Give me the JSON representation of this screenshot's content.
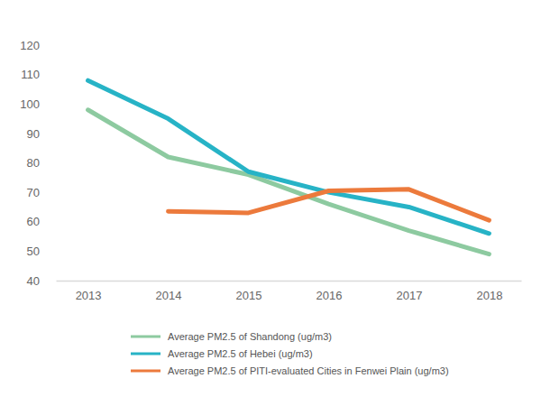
{
  "chart_data": {
    "type": "line",
    "categories": [
      "2013",
      "2014",
      "2015",
      "2016",
      "2017",
      "2018"
    ],
    "series": [
      {
        "name": "Average PM2.5 of Shandong (ug/m3)",
        "color": "#8dcaa0",
        "values": [
          98,
          82,
          76,
          66,
          57,
          49
        ]
      },
      {
        "name": "Average PM2.5 of Hebei (ug/m3)",
        "color": "#27b3c6",
        "values": [
          108,
          95,
          77,
          70,
          65,
          56
        ]
      },
      {
        "name": "Average PM2.5 of PITI-evaluated Cities in Fenwei Plain (ug/m3)",
        "color": "#ec7a3c",
        "values": [
          null,
          63.5,
          63,
          70.5,
          71,
          60.5
        ]
      }
    ],
    "ylim": [
      40,
      120
    ],
    "yticks": [
      40,
      50,
      60,
      70,
      80,
      90,
      100,
      110,
      120
    ],
    "grid": false,
    "legend": "bottom"
  }
}
